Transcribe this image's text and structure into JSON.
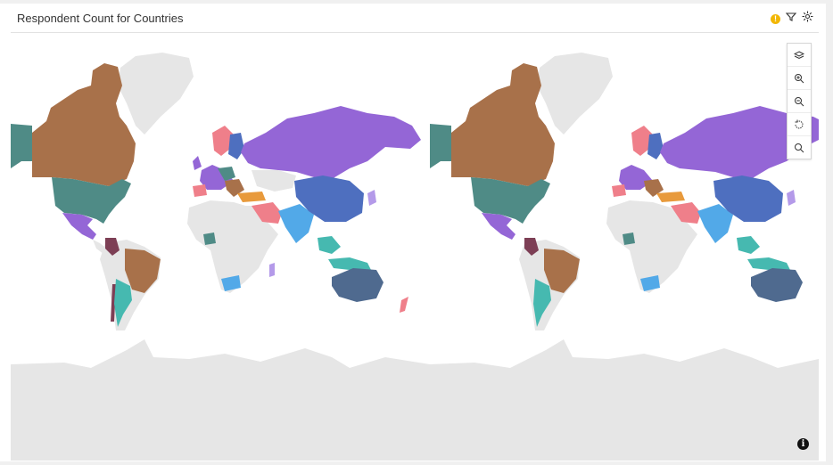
{
  "panel": {
    "title": "Respondent Count for Countries"
  },
  "header_icons": [
    "warning-icon",
    "filter-icon",
    "settings-icon"
  ],
  "map_tools": [
    "layers-icon",
    "zoom-in-icon",
    "zoom-out-icon",
    "reset-view-icon",
    "search-icon"
  ],
  "info_icon": "info-icon",
  "colors": {
    "land_default": "#e6e6e6",
    "brown": "#a8714a",
    "teal_dark": "#4f8b86",
    "purple": "#9466d6",
    "blue_steel": "#4f6a8f",
    "blue_royal": "#4e6fbf",
    "sky": "#52a9e8",
    "salmon": "#ef7f8a",
    "orange": "#e89a3c",
    "teal_light": "#46b9b0",
    "maroon": "#7d3f55",
    "lavender": "#b49ae9"
  }
}
